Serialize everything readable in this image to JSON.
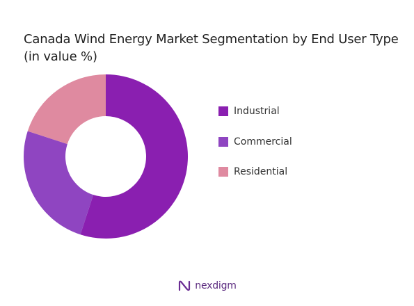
{
  "chart_data": {
    "type": "pie",
    "title": "Canada Wind Energy Market Segmentation by End User Type (in value %)",
    "donut": true,
    "categories": [
      "Industrial",
      "Commercial",
      "Residential"
    ],
    "values": [
      55,
      25,
      20
    ],
    "colors": [
      "#8a1fb0",
      "#8f45c1",
      "#df8aa0"
    ],
    "legend_position": "right"
  },
  "brand": {
    "name": "nexdigm",
    "logo_icon": "nexdigm-logo-icon",
    "color": "#5b2a7f"
  }
}
